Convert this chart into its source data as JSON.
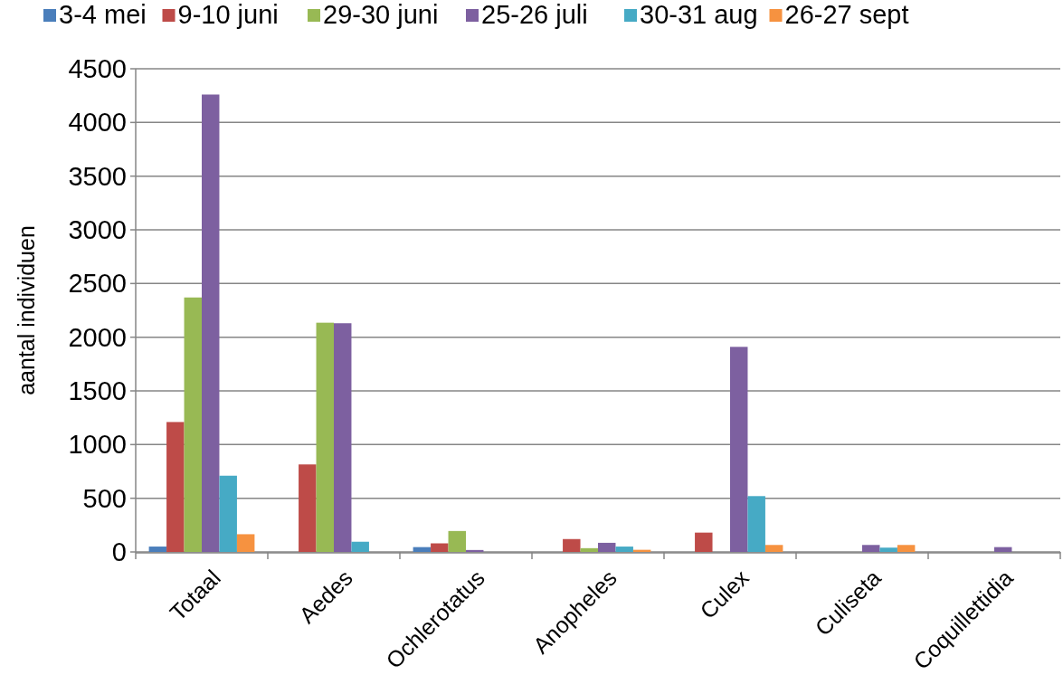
{
  "chart_data": {
    "type": "bar",
    "ylabel": "aantal individuen",
    "categories": [
      "Totaal",
      "Aedes",
      "Ochlerotatus",
      "Anopheles",
      "Culex",
      "Culiseta",
      "Coquillettidia"
    ],
    "series": [
      {
        "name": "3-4 mei",
        "color": "#4a7ebb",
        "values": [
          50,
          0,
          45,
          0,
          0,
          0,
          0
        ]
      },
      {
        "name": "9-10 juni",
        "color": "#be4b48",
        "values": [
          1210,
          815,
          80,
          120,
          180,
          0,
          0
        ]
      },
      {
        "name": "29-30 juni",
        "color": "#98b954",
        "values": [
          2370,
          2135,
          195,
          35,
          0,
          0,
          0
        ]
      },
      {
        "name": "25-26 juli",
        "color": "#7d60a0",
        "values": [
          4260,
          2130,
          18,
          85,
          1910,
          65,
          45
        ]
      },
      {
        "name": "30-31 aug",
        "color": "#46aac5",
        "values": [
          710,
          95,
          0,
          50,
          520,
          40,
          0
        ]
      },
      {
        "name": "26-27 sept",
        "color": "#f69240",
        "values": [
          165,
          0,
          0,
          20,
          65,
          65,
          0
        ]
      }
    ],
    "ylim": [
      0,
      4500
    ],
    "yticks": [
      0,
      500,
      1000,
      1500,
      2000,
      2500,
      3000,
      3500,
      4000,
      4500
    ],
    "grid": "y",
    "legend": "top"
  }
}
